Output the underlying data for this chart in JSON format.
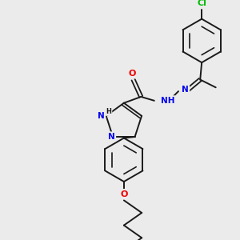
{
  "background_color": "#ebebeb",
  "bond_color": "#1a1a1a",
  "atom_colors": {
    "N": "#0000ee",
    "O": "#ee0000",
    "Cl": "#00bb00",
    "H": "#1a1a1a",
    "C": "#1a1a1a"
  },
  "figsize": [
    3.0,
    3.0
  ],
  "dpi": 100
}
